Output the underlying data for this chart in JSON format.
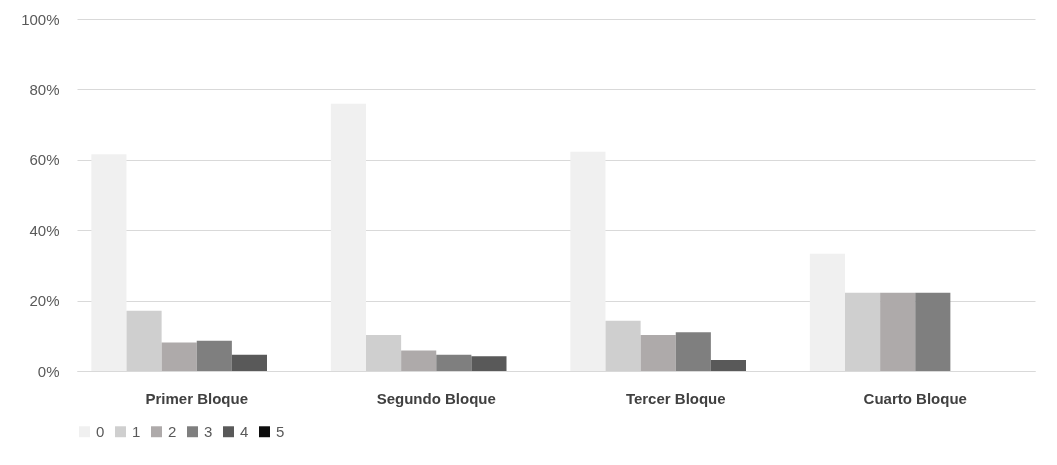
{
  "chart_data": {
    "type": "bar",
    "categories": [
      "Primer Bloque",
      "Segundo Bloque",
      "Tercer Bloque",
      "Cuarto Bloque"
    ],
    "series": [
      {
        "name": "0",
        "color": "#f0f0f0",
        "values": [
          61.6,
          75.9,
          62.3,
          33.3
        ]
      },
      {
        "name": "1",
        "color": "#cfcfcf",
        "values": [
          17.1,
          10.2,
          14.3,
          22.2
        ]
      },
      {
        "name": "2",
        "color": "#aeaaaa",
        "values": [
          8.1,
          5.8,
          10.2,
          22.2
        ]
      },
      {
        "name": "3",
        "color": "#7f7f7f",
        "values": [
          8.6,
          4.6,
          11.0,
          22.2
        ]
      },
      {
        "name": "4",
        "color": "#595959",
        "values": [
          4.6,
          4.2,
          3.1,
          0
        ]
      },
      {
        "name": "5",
        "color": "#0d0d0d",
        "values": [
          0,
          0,
          0,
          0
        ]
      }
    ],
    "ylim": [
      0,
      100
    ],
    "yticks": [
      {
        "value": 0,
        "label": "0%"
      },
      {
        "value": 20,
        "label": "20%"
      },
      {
        "value": 40,
        "label": "40%"
      },
      {
        "value": 60,
        "label": "60%"
      },
      {
        "value": 80,
        "label": "80%"
      },
      {
        "value": 100,
        "label": "100%"
      }
    ],
    "grid": "y",
    "legend": "bottom"
  }
}
